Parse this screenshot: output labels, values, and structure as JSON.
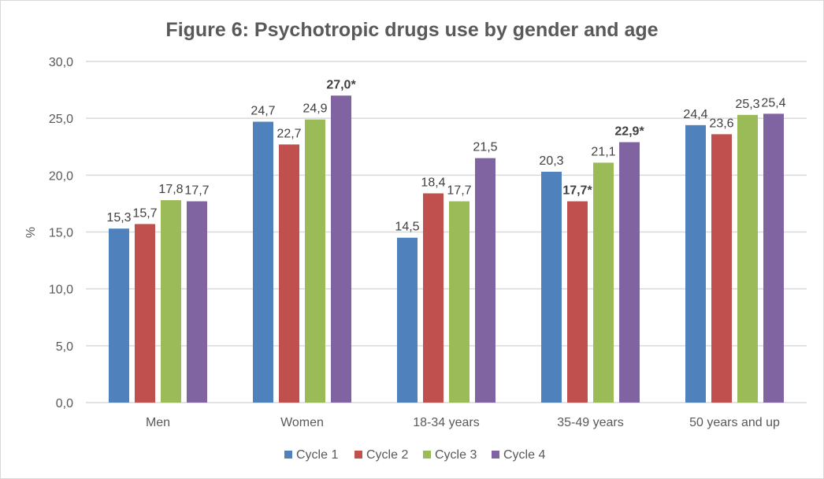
{
  "chart_data": {
    "type": "bar",
    "title": "Figure 6: Psychotropic drugs use by gender and age",
    "xlabel": "",
    "ylabel": "%",
    "ylim": [
      0,
      30
    ],
    "yticks": [
      "0,0",
      "5,0",
      "10,0",
      "15,0",
      "20,0",
      "25,0",
      "30,0"
    ],
    "grid": true,
    "legend_position": "bottom",
    "categories": [
      "Men",
      "Women",
      "18-34 years",
      "35-49 years",
      "50 years and up"
    ],
    "series": [
      {
        "name": "Cycle 1",
        "color": "#4F81BD",
        "values": [
          15.3,
          24.7,
          14.5,
          20.3,
          24.4
        ],
        "labels": [
          "15,3",
          "24,7",
          "14,5",
          "20,3",
          "24,4"
        ],
        "bold": [
          false,
          false,
          false,
          false,
          false
        ]
      },
      {
        "name": "Cycle 2",
        "color": "#C0504D",
        "values": [
          15.7,
          22.7,
          18.4,
          17.7,
          23.6
        ],
        "labels": [
          "15,7",
          "22,7",
          "18,4",
          "17,7*",
          "23,6"
        ],
        "bold": [
          false,
          false,
          false,
          true,
          false
        ]
      },
      {
        "name": "Cycle 3",
        "color": "#9BBB59",
        "values": [
          17.8,
          24.9,
          17.7,
          21.1,
          25.3
        ],
        "labels": [
          "17,8",
          "24,9",
          "17,7",
          "21,1",
          "25,3"
        ],
        "bold": [
          false,
          false,
          false,
          false,
          false
        ]
      },
      {
        "name": "Cycle 4",
        "color": "#8064A2",
        "values": [
          17.7,
          27.0,
          21.5,
          22.9,
          25.4
        ],
        "labels": [
          "17,7",
          "27,0*",
          "21,5",
          "22,9*",
          "25,4"
        ],
        "bold": [
          false,
          true,
          false,
          true,
          false
        ]
      }
    ]
  }
}
